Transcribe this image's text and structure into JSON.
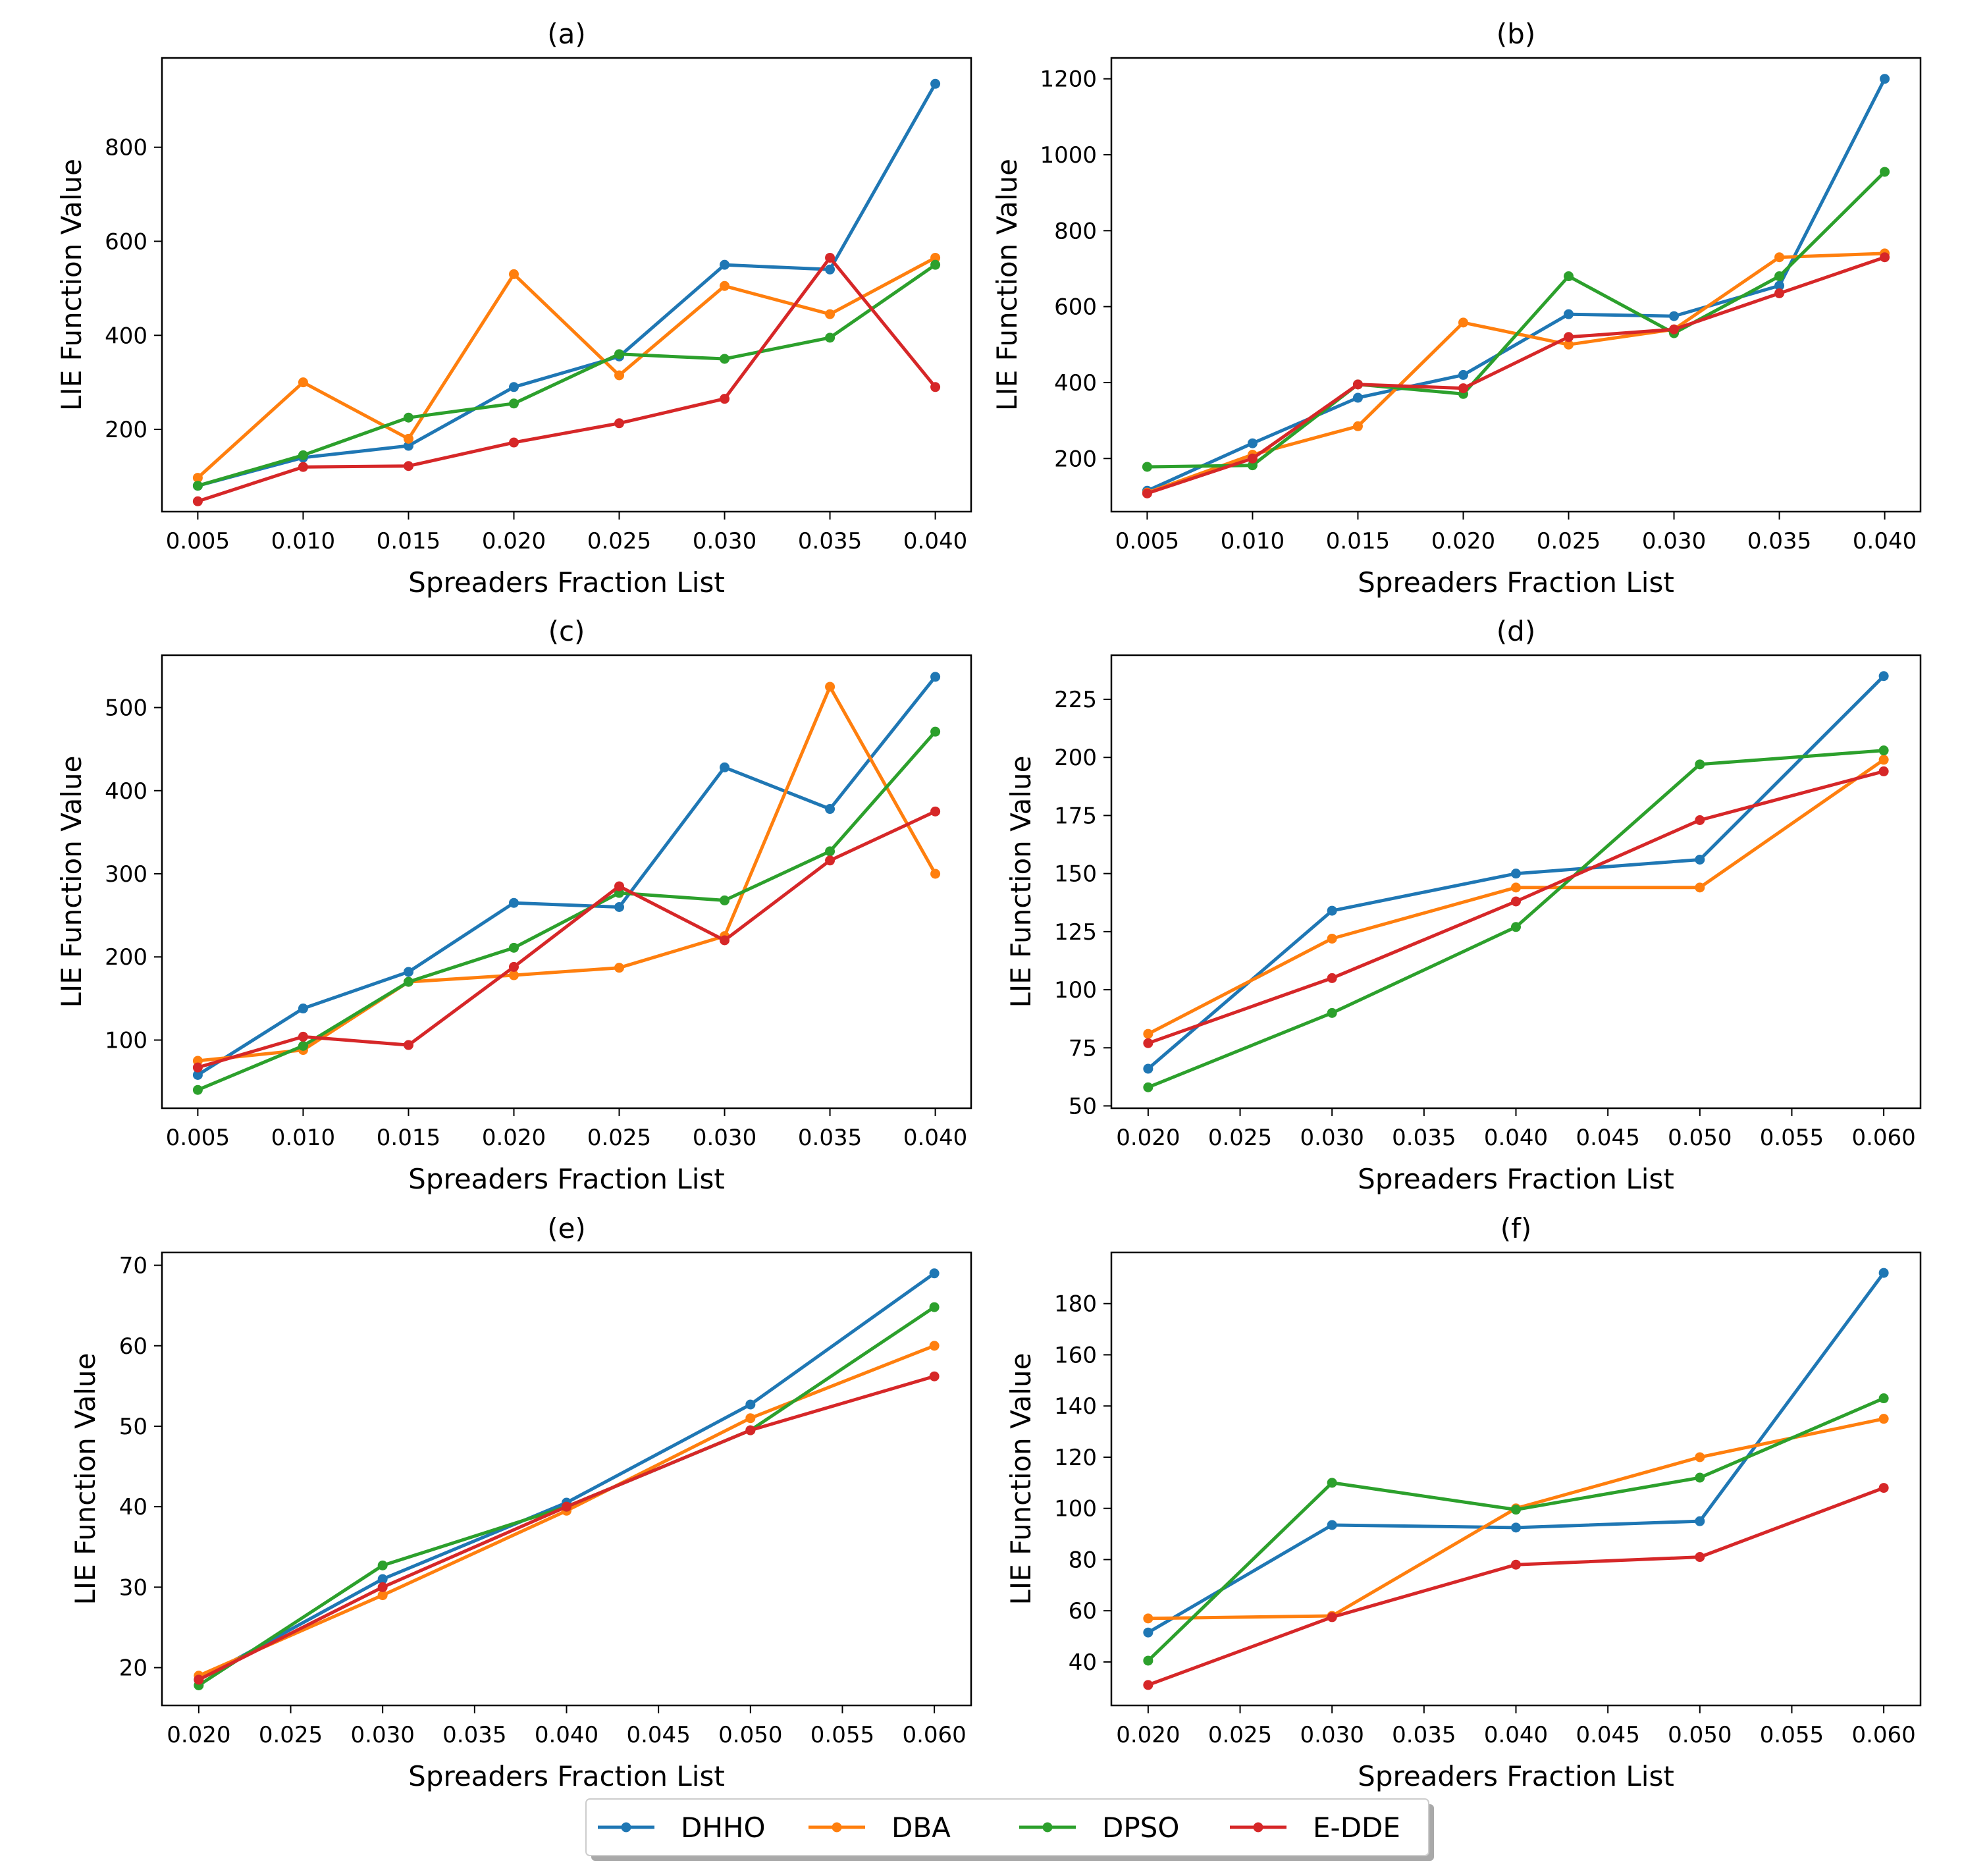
{
  "series_colors": {
    "DHHO": "#1f77b4",
    "DBA": "#ff7f0e",
    "DPSO": "#2ca02c",
    "E-DDE": "#d62728"
  },
  "legend": {
    "entries": [
      "DHHO",
      "DBA",
      "DPSO",
      "E-DDE"
    ],
    "placement": "bottom-center"
  },
  "chart_data": [
    {
      "type": "line",
      "title": "(a)",
      "xlabel": "Spreaders Fraction List",
      "ylabel": "LIE Function Value",
      "x": [
        0.005,
        0.01,
        0.015,
        0.02,
        0.025,
        0.03,
        0.035,
        0.04
      ],
      "xticks": [
        "0.005",
        "0.010",
        "0.015",
        "0.020",
        "0.025",
        "0.030",
        "0.035",
        "0.040"
      ],
      "xlim": [
        0.0033,
        0.0417
      ],
      "yticks": [
        200,
        400,
        600,
        800
      ],
      "ylim": [
        25,
        990
      ],
      "series": [
        {
          "name": "DHHO",
          "values": [
            80,
            140,
            165,
            290,
            355,
            550,
            540,
            935
          ]
        },
        {
          "name": "DBA",
          "values": [
            97,
            300,
            180,
            530,
            315,
            505,
            445,
            565
          ]
        },
        {
          "name": "DPSO",
          "values": [
            80,
            145,
            225,
            255,
            360,
            350,
            395,
            550
          ]
        },
        {
          "name": "E-DDE",
          "values": [
            47,
            120,
            122,
            172,
            213,
            265,
            565,
            290
          ]
        }
      ]
    },
    {
      "type": "line",
      "title": "(b)",
      "xlabel": "Spreaders Fraction List",
      "ylabel": "LIE Function Value",
      "x": [
        0.005,
        0.01,
        0.015,
        0.02,
        0.025,
        0.03,
        0.035,
        0.04
      ],
      "xticks": [
        "0.005",
        "0.010",
        "0.015",
        "0.020",
        "0.025",
        "0.030",
        "0.035",
        "0.040"
      ],
      "xlim": [
        0.0033,
        0.0417
      ],
      "yticks": [
        200,
        400,
        600,
        800,
        1000,
        1200
      ],
      "ylim": [
        60,
        1255
      ],
      "series": [
        {
          "name": "DHHO",
          "values": [
            115,
            240,
            360,
            420,
            580,
            575,
            655,
            1200
          ]
        },
        {
          "name": "DBA",
          "values": [
            110,
            210,
            285,
            558,
            500,
            540,
            730,
            740
          ]
        },
        {
          "name": "DPSO",
          "values": [
            178,
            182,
            395,
            370,
            680,
            530,
            680,
            955
          ]
        },
        {
          "name": "E-DDE",
          "values": [
            108,
            200,
            395,
            385,
            520,
            540,
            635,
            730
          ]
        }
      ]
    },
    {
      "type": "line",
      "title": "(c)",
      "xlabel": "Spreaders Fraction List",
      "ylabel": "LIE Function Value",
      "x": [
        0.005,
        0.01,
        0.015,
        0.02,
        0.025,
        0.03,
        0.035,
        0.04
      ],
      "xticks": [
        "0.005",
        "0.010",
        "0.015",
        "0.020",
        "0.025",
        "0.030",
        "0.035",
        "0.040"
      ],
      "xlim": [
        0.0033,
        0.0417
      ],
      "yticks": [
        100,
        200,
        300,
        400,
        500
      ],
      "ylim": [
        18,
        563
      ],
      "series": [
        {
          "name": "DHHO",
          "values": [
            58,
            138,
            182,
            265,
            260,
            428,
            378,
            537
          ]
        },
        {
          "name": "DBA",
          "values": [
            75,
            88,
            170,
            178,
            187,
            225,
            525,
            300
          ]
        },
        {
          "name": "DPSO",
          "values": [
            40,
            93,
            170,
            211,
            277,
            268,
            327,
            471
          ]
        },
        {
          "name": "E-DDE",
          "values": [
            67,
            104,
            94,
            188,
            285,
            220,
            316,
            375
          ]
        }
      ]
    },
    {
      "type": "line",
      "title": "(d)",
      "xlabel": "Spreaders Fraction List",
      "ylabel": "LIE Function Value",
      "x": [
        0.02,
        0.03,
        0.04,
        0.05,
        0.06
      ],
      "xticks": [
        "0.020",
        "0.025",
        "0.030",
        "0.035",
        "0.040",
        "0.045",
        "0.050",
        "0.055",
        "0.060"
      ],
      "xlim": [
        0.018,
        0.062
      ],
      "yticks": [
        50,
        75,
        100,
        125,
        150,
        175,
        200,
        225
      ],
      "ylim": [
        49,
        244
      ],
      "series": [
        {
          "name": "DHHO",
          "values": [
            66,
            134,
            150,
            156,
            235
          ]
        },
        {
          "name": "DBA",
          "values": [
            81,
            122,
            144,
            144,
            199
          ]
        },
        {
          "name": "DPSO",
          "values": [
            58,
            90,
            127,
            197,
            203
          ]
        },
        {
          "name": "E-DDE",
          "values": [
            77,
            105,
            138,
            173,
            194
          ]
        }
      ]
    },
    {
      "type": "line",
      "title": "(e)",
      "xlabel": "Spreaders Fraction List",
      "ylabel": "LIE Function Value",
      "x": [
        0.02,
        0.03,
        0.04,
        0.05,
        0.06
      ],
      "xticks": [
        "0.020",
        "0.025",
        "0.030",
        "0.035",
        "0.040",
        "0.045",
        "0.050",
        "0.055",
        "0.060"
      ],
      "xlim": [
        0.018,
        0.062
      ],
      "yticks": [
        20,
        30,
        40,
        50,
        60,
        70
      ],
      "ylim": [
        15.3,
        71.6
      ],
      "series": [
        {
          "name": "DHHO",
          "values": [
            18.5,
            31,
            40.5,
            52.7,
            69
          ]
        },
        {
          "name": "DBA",
          "values": [
            19,
            29,
            39.5,
            51,
            60
          ]
        },
        {
          "name": "DPSO",
          "values": [
            17.8,
            32.7,
            40,
            49.5,
            64.8
          ]
        },
        {
          "name": "E-DDE",
          "values": [
            18.5,
            30,
            40,
            49.5,
            56.2
          ]
        }
      ]
    },
    {
      "type": "line",
      "title": "(f)",
      "xlabel": "Spreaders Fraction List",
      "ylabel": "LIE Function Value",
      "x": [
        0.02,
        0.03,
        0.04,
        0.05,
        0.06
      ],
      "xticks": [
        "0.020",
        "0.025",
        "0.030",
        "0.035",
        "0.040",
        "0.045",
        "0.050",
        "0.055",
        "0.060"
      ],
      "xlim": [
        0.018,
        0.062
      ],
      "yticks": [
        40,
        60,
        80,
        100,
        120,
        140,
        160,
        180
      ],
      "ylim": [
        23,
        200
      ],
      "series": [
        {
          "name": "DHHO",
          "values": [
            51.5,
            93.5,
            92.5,
            95,
            192
          ]
        },
        {
          "name": "DBA",
          "values": [
            57,
            58,
            100,
            120,
            135
          ]
        },
        {
          "name": "DPSO",
          "values": [
            40.5,
            110,
            99.5,
            112,
            143
          ]
        },
        {
          "name": "E-DDE",
          "values": [
            31,
            57.5,
            78,
            81,
            108
          ]
        }
      ]
    }
  ]
}
